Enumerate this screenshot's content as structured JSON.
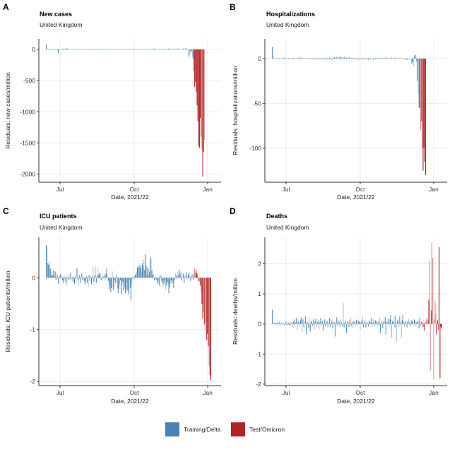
{
  "legend": {
    "items": [
      {
        "label": "Training/Delta",
        "color": "#4682b4"
      },
      {
        "label": "Test/Omicron",
        "color": "#b22222"
      }
    ]
  },
  "chart_data": [
    {
      "type": "bar",
      "letter": "A",
      "title": "New cases",
      "subtitle": "United Kingdom",
      "xlabel": "Date, 2021/22",
      "ylabel": "Residuals: new cases/million",
      "x_ticks": [
        "Jul",
        "Oct",
        "Jan"
      ],
      "y_ticks": [
        0,
        -500,
        -1000,
        -1500,
        -2000
      ],
      "ylim": [
        -2130,
        170
      ],
      "start_date": "2021-06-14",
      "test_start_index": 184,
      "series_scale": 1,
      "values": [
        80,
        10,
        5,
        -8,
        4,
        -10,
        6,
        -5,
        8,
        -12,
        3,
        5,
        -6,
        9,
        -15,
        -60,
        -8,
        4,
        7,
        -3,
        10,
        12,
        -6,
        5,
        20,
        -8,
        15,
        -4,
        10,
        8,
        -5,
        6,
        -3,
        10,
        -7,
        4,
        5,
        -6,
        8,
        -4,
        2,
        6,
        -8,
        10,
        -3,
        5,
        -4,
        7,
        -6,
        3,
        8,
        -5,
        4,
        -7,
        10,
        2,
        -3,
        6,
        -5,
        8,
        -10,
        4,
        7,
        -3,
        12,
        -6,
        5,
        -4,
        9,
        -2,
        6,
        -8,
        3,
        10,
        -5,
        4,
        -6,
        8,
        -3,
        5,
        9,
        -7,
        4,
        -2,
        6,
        -5,
        11,
        -4,
        3,
        -6,
        8,
        -3,
        5,
        -7,
        10,
        -4,
        2,
        6,
        -5,
        8,
        -3,
        4,
        -6,
        9,
        -2,
        7,
        -5,
        3,
        -8,
        10,
        -4,
        6,
        -3,
        5,
        -7,
        12,
        -5,
        8,
        -2,
        4,
        -6,
        10,
        -3,
        7,
        -5,
        3,
        -4,
        9,
        -6,
        5,
        -2,
        8,
        -7,
        4,
        15,
        -3,
        6,
        -8,
        10,
        -4,
        5,
        12,
        -6,
        3,
        8,
        -5,
        14,
        -3,
        6,
        -7,
        10,
        -4,
        18,
        -5,
        8,
        -3,
        12,
        -6,
        4,
        15,
        -5,
        9,
        -2,
        20,
        -8,
        6,
        14,
        -3,
        10,
        -5,
        18,
        -4,
        8,
        22,
        -6,
        12,
        -3,
        -120,
        -80,
        -40,
        -20,
        -110,
        -150,
        -350,
        -600,
        -520,
        -680,
        -900,
        -1150,
        -1550,
        -1580,
        -1100,
        -1400,
        -1600,
        -2040,
        -1650,
        -1450
      ],
      "test_light": [
        0,
        0,
        0,
        0,
        0,
        0,
        0,
        0,
        0,
        1,
        0,
        0,
        1,
        1,
        0,
        0,
        1,
        1,
        0,
        1
      ]
    },
    {
      "type": "bar",
      "letter": "B",
      "title": "Hospitalizations",
      "subtitle": "United Kingdom",
      "xlabel": "Date, 2021/22",
      "ylabel": "Residuals: hospitalizations/million",
      "x_ticks": [
        "Jul",
        "Oct",
        "Jan"
      ],
      "y_ticks": [
        0,
        -50,
        -100
      ],
      "ylim": [
        -138,
        22
      ],
      "start_date": "2021-06-14",
      "test_start_index": 184,
      "values": [
        13,
        2,
        0.3,
        -0.5,
        0.4,
        -0.3,
        0.2,
        -0.4,
        0.5,
        -0.6,
        0.3,
        0.5,
        -0.3,
        0.6,
        -0.5,
        1.2,
        -0.4,
        0.3,
        0.5,
        -0.2,
        0.6,
        -0.4,
        0.3,
        -0.8,
        0.5,
        -0.3,
        0.7,
        -0.6,
        0.4,
        -0.5,
        0.6,
        -0.3,
        0.8,
        -0.7,
        0.4,
        1.2,
        -0.3,
        0.5,
        -0.6,
        0.4,
        -0.8,
        0.3,
        -0.5,
        0.6,
        -0.4,
        0.7,
        -0.3,
        0.5,
        -0.9,
        0.4,
        -0.6,
        1.0,
        -0.5,
        0.3,
        -1.2,
        0.6,
        -0.4,
        0.5,
        -1.5,
        0.3,
        -0.6,
        0.8,
        -1.0,
        0.4,
        -0.5,
        0.7,
        -1.3,
        0.5,
        -0.8,
        0.6,
        -0.4,
        1.0,
        -0.7,
        0.5,
        -1.2,
        0.8,
        0.4,
        1.5,
        -0.6,
        1.0,
        2.0,
        0.6,
        -0.5,
        1.2,
        2.5,
        -0.4,
        0.8,
        1.5,
        -0.6,
        1.0,
        2.2,
        -0.5,
        0.7,
        1.2,
        -0.8,
        0.6,
        2.0,
        -0.4,
        0.5,
        1.0,
        -0.6,
        0.8,
        -0.5,
        0.6,
        -1.0,
        0.4,
        -0.7,
        0.5,
        -1.2,
        0.3,
        -0.5,
        0.8,
        -1.4,
        0.6,
        -0.4,
        -1.0,
        0.5,
        -0.8,
        0.4,
        -1.5,
        0.6,
        -0.5,
        0.8,
        -0.6,
        0.3,
        -1.2,
        0.5,
        -0.4,
        0.7,
        -0.8,
        0.5,
        -0.6,
        1.0,
        -0.4,
        0.5,
        -0.9,
        0.6,
        -0.3,
        0.8,
        -0.5,
        0.6,
        1.2,
        -0.4,
        0.5,
        -0.7,
        0.8,
        0.4,
        -0.5,
        1.5,
        -0.3,
        0.6,
        -0.4,
        1.0,
        -0.6,
        0.8,
        -0.5,
        0.4,
        -0.8,
        0.6,
        -0.3,
        0.5,
        -0.6,
        0.4,
        -0.5,
        0.3,
        -0.8,
        -1.0,
        -1.5,
        -0.8,
        -0.6,
        -0.5,
        -0.4,
        -0.3,
        -6,
        -4,
        -8,
        2,
        4,
        5,
        -3,
        -25,
        -40,
        -55,
        -55,
        -80,
        -70,
        -100,
        -125,
        -100,
        -115,
        -130
      ],
      "test_light": [
        1,
        0,
        1,
        0,
        0,
        0,
        0,
        0,
        0,
        1,
        0,
        0,
        0,
        0,
        1,
        0,
        1,
        0,
        1,
        1,
        1
      ]
    },
    {
      "type": "bar",
      "letter": "C",
      "title": "ICU patients",
      "subtitle": "United Kingdom",
      "xlabel": "Date, 2021/22",
      "ylabel": "Residuals: ICU patients/million",
      "x_ticks": [
        "Jul",
        "Oct",
        "Jan"
      ],
      "y_ticks": [
        0,
        -1,
        -2
      ],
      "ylim": [
        -2.08,
        0.78
      ],
      "start_date": "2021-06-14",
      "test_start_index": 184,
      "values": [
        0.63,
        0.58,
        0.28,
        0.25,
        0.32,
        0.18,
        0.05,
        0.12,
        0.05,
        0.14,
        0.04,
        0.12,
        -0.05,
        0.1,
        0.04,
        -0.12,
        -0.02,
        0.04,
        0.08,
        0.02,
        -0.05,
        -0.1,
        0.05,
        -0.02,
        -0.08,
        -0.15,
        0.02,
        -0.04,
        0.06,
        -0.03,
        0.1,
        -0.05,
        -0.02,
        -0.08,
        0.04,
        -0.12,
        0.02,
        -0.05,
        0.18,
        -0.03,
        -0.15,
        0.05,
        -0.1,
        -0.02,
        0.08,
        -0.05,
        0.02,
        -0.06,
        -0.12,
        -0.08,
        0.03,
        -0.1,
        -0.18,
        0.05,
        -0.06,
        0.04,
        -0.12,
        0.02,
        0.2,
        -0.08,
        0.05,
        0.22,
        -0.1,
        0.03,
        0.18,
        0.06,
        0.1,
        0.08,
        -0.05,
        -0.02,
        0.04,
        0.02,
        0.05,
        -0.04,
        0.08,
        0.18,
        0.02,
        -0.06,
        -0.22,
        -0.15,
        -0.28,
        -0.2,
        0.12,
        -0.24,
        -0.05,
        -0.18,
        -0.1,
        0.05,
        -0.2,
        -0.3,
        -0.22,
        -0.12,
        -0.05,
        -0.32,
        -0.15,
        -0.08,
        -0.25,
        -0.18,
        -0.3,
        -0.22,
        -0.1,
        -0.25,
        -0.32,
        -0.05,
        -0.2,
        -0.44,
        -0.12,
        -0.02,
        0.02,
        -0.04,
        0.05,
        0.08,
        0.12,
        0.2,
        0.22,
        0.18,
        0.25,
        0.2,
        0.12,
        0.28,
        0.22,
        0.35,
        0.15,
        0.45,
        0.25,
        0.2,
        0.05,
        0.18,
        0.12,
        0.4,
        0.35,
        0.15,
        0.05,
        0.08,
        -0.05,
        -0.02,
        0.02,
        -0.05,
        -0.12,
        -0.08,
        -0.15,
        0.04,
        0.05,
        -0.06,
        -0.1,
        -0.18,
        -0.12,
        -0.05,
        -0.22,
        -0.15,
        -0.08,
        -0.12,
        -0.3,
        -0.18,
        -0.1,
        -0.05,
        -0.12,
        -0.08,
        -0.2,
        -0.04,
        0.08,
        0.05,
        -0.02,
        0.12,
        0.05,
        0.15,
        0.08,
        0.1,
        -0.05,
        0.02,
        0.08,
        -0.1,
        0.05,
        0.02,
        0.1,
        -0.03,
        0.06,
        0.1,
        0.02,
        -0.06,
        0.04,
        0.05,
        0.08,
        -0.04,
        0.18,
        0.1,
        0.15,
        0.08,
        0.02,
        -0.06,
        -0.08,
        -0.15,
        -0.28,
        -0.5,
        -0.78,
        -0.65,
        -0.9,
        -1.02,
        -0.85,
        -1.2,
        -1.08,
        -1.32,
        -1.7,
        -1.88,
        -1.98
      ],
      "test_light": [
        1,
        1,
        0,
        0,
        1,
        0,
        1,
        0,
        1,
        0,
        0,
        1,
        0,
        1,
        1,
        0,
        0,
        0,
        1
      ]
    },
    {
      "type": "bar",
      "letter": "D",
      "title": "Deaths",
      "subtitle": "United Kingdom",
      "xlabel": "Date, 2021/22",
      "ylabel": "Residuals: deaths/million",
      "x_ticks": [
        "Jul",
        "Oct",
        "Jan"
      ],
      "y_ticks": [
        2,
        1,
        0,
        -1,
        -2
      ],
      "ylim": [
        -2.05,
        2.88
      ],
      "start_date": "2021-06-14",
      "test_start_index": 184,
      "values": [
        0.47,
        0.05,
        0.02,
        0.04,
        -0.02,
        0.03,
        0.05,
        -0.03,
        0.02,
        0.06,
        -0.04,
        0.03,
        -0.02,
        0.05,
        0.02,
        -0.04,
        0.03,
        0.08,
        -0.05,
        0.02,
        0.04,
        -0.06,
        0.1,
        -0.03,
        0.05,
        -0.12,
        0.08,
        0.15,
        -0.1,
        0.05,
        0.2,
        -0.2,
        0.1,
        0.05,
        -0.08,
        0.12,
        0.22,
        -0.3,
        0.15,
        -0.1,
        0.08,
        0.25,
        -0.35,
        0.12,
        0.05,
        -0.15,
        0.2,
        -0.25,
        0.1,
        0.08,
        -0.05,
        0.15,
        -0.2,
        0.08,
        0.18,
        -0.1,
        0.05,
        0.12,
        -0.18,
        0.06,
        0.2,
        -0.08,
        0.1,
        -0.22,
        0.05,
        0.15,
        -0.06,
        0.08,
        0.1,
        -0.12,
        0.05,
        0.2,
        -0.1,
        0.06,
        0.12,
        -0.15,
        0.08,
        0.05,
        -0.42,
        0.1,
        0.22,
        -0.05,
        0.12,
        0.08,
        -0.1,
        0.15,
        0.05,
        -0.08,
        0.7,
        -0.12,
        0.05,
        0.1,
        -0.3,
        0.08,
        0.06,
        -0.1,
        0.12,
        0.2,
        -0.06,
        0.08,
        -0.15,
        0.1,
        0.05,
        -0.08,
        0.12,
        0.15,
        -0.05,
        0.1,
        0.08,
        -0.2,
        0.05,
        0.12,
        0.25,
        -0.1,
        0.08,
        0.15,
        -0.12,
        0.05,
        0.06,
        -0.08,
        0.1,
        0.12,
        0.05,
        0.2,
        -0.1,
        0.05,
        0.15,
        -0.08,
        0.12,
        0.06,
        0.1,
        -0.05,
        0.08,
        0.2,
        -0.3,
        0.05,
        0.12,
        -0.15,
        0.08,
        0.1,
        0.22,
        -0.35,
        0.12,
        0.05,
        0.18,
        -0.08,
        0.15,
        0.3,
        -0.45,
        0.1,
        0.06,
        0.22,
        -0.12,
        0.28,
        -0.58,
        0.08,
        0.15,
        -0.1,
        0.25,
        0.05,
        -0.45,
        0.12,
        0.3,
        0.06,
        -0.08,
        0.1,
        0.05,
        -0.12,
        0.08,
        0.15,
        0.05,
        -0.06,
        0.1,
        0.12,
        0.08,
        -0.05,
        0.15,
        0.1,
        -0.08,
        0.05,
        0.08,
        0.12,
        -0.15,
        0.2,
        -0.05,
        0.08,
        0.05,
        -0.1,
        0.12,
        -0.22,
        0.06,
        0.15,
        0.2,
        0.12,
        0.8,
        2.1,
        -1.55,
        0.45,
        2.7,
        2.2,
        -1.85,
        0.15,
        0.75,
        0.35,
        -0.35,
        0.12,
        -0.2,
        2.55,
        -1.8,
        -0.1,
        -0.15
      ],
      "test_light": [
        1,
        0,
        1,
        0,
        1,
        0,
        1,
        1,
        1,
        1,
        0,
        1,
        1,
        0,
        1,
        1,
        1,
        1,
        1,
        1
      ]
    }
  ]
}
